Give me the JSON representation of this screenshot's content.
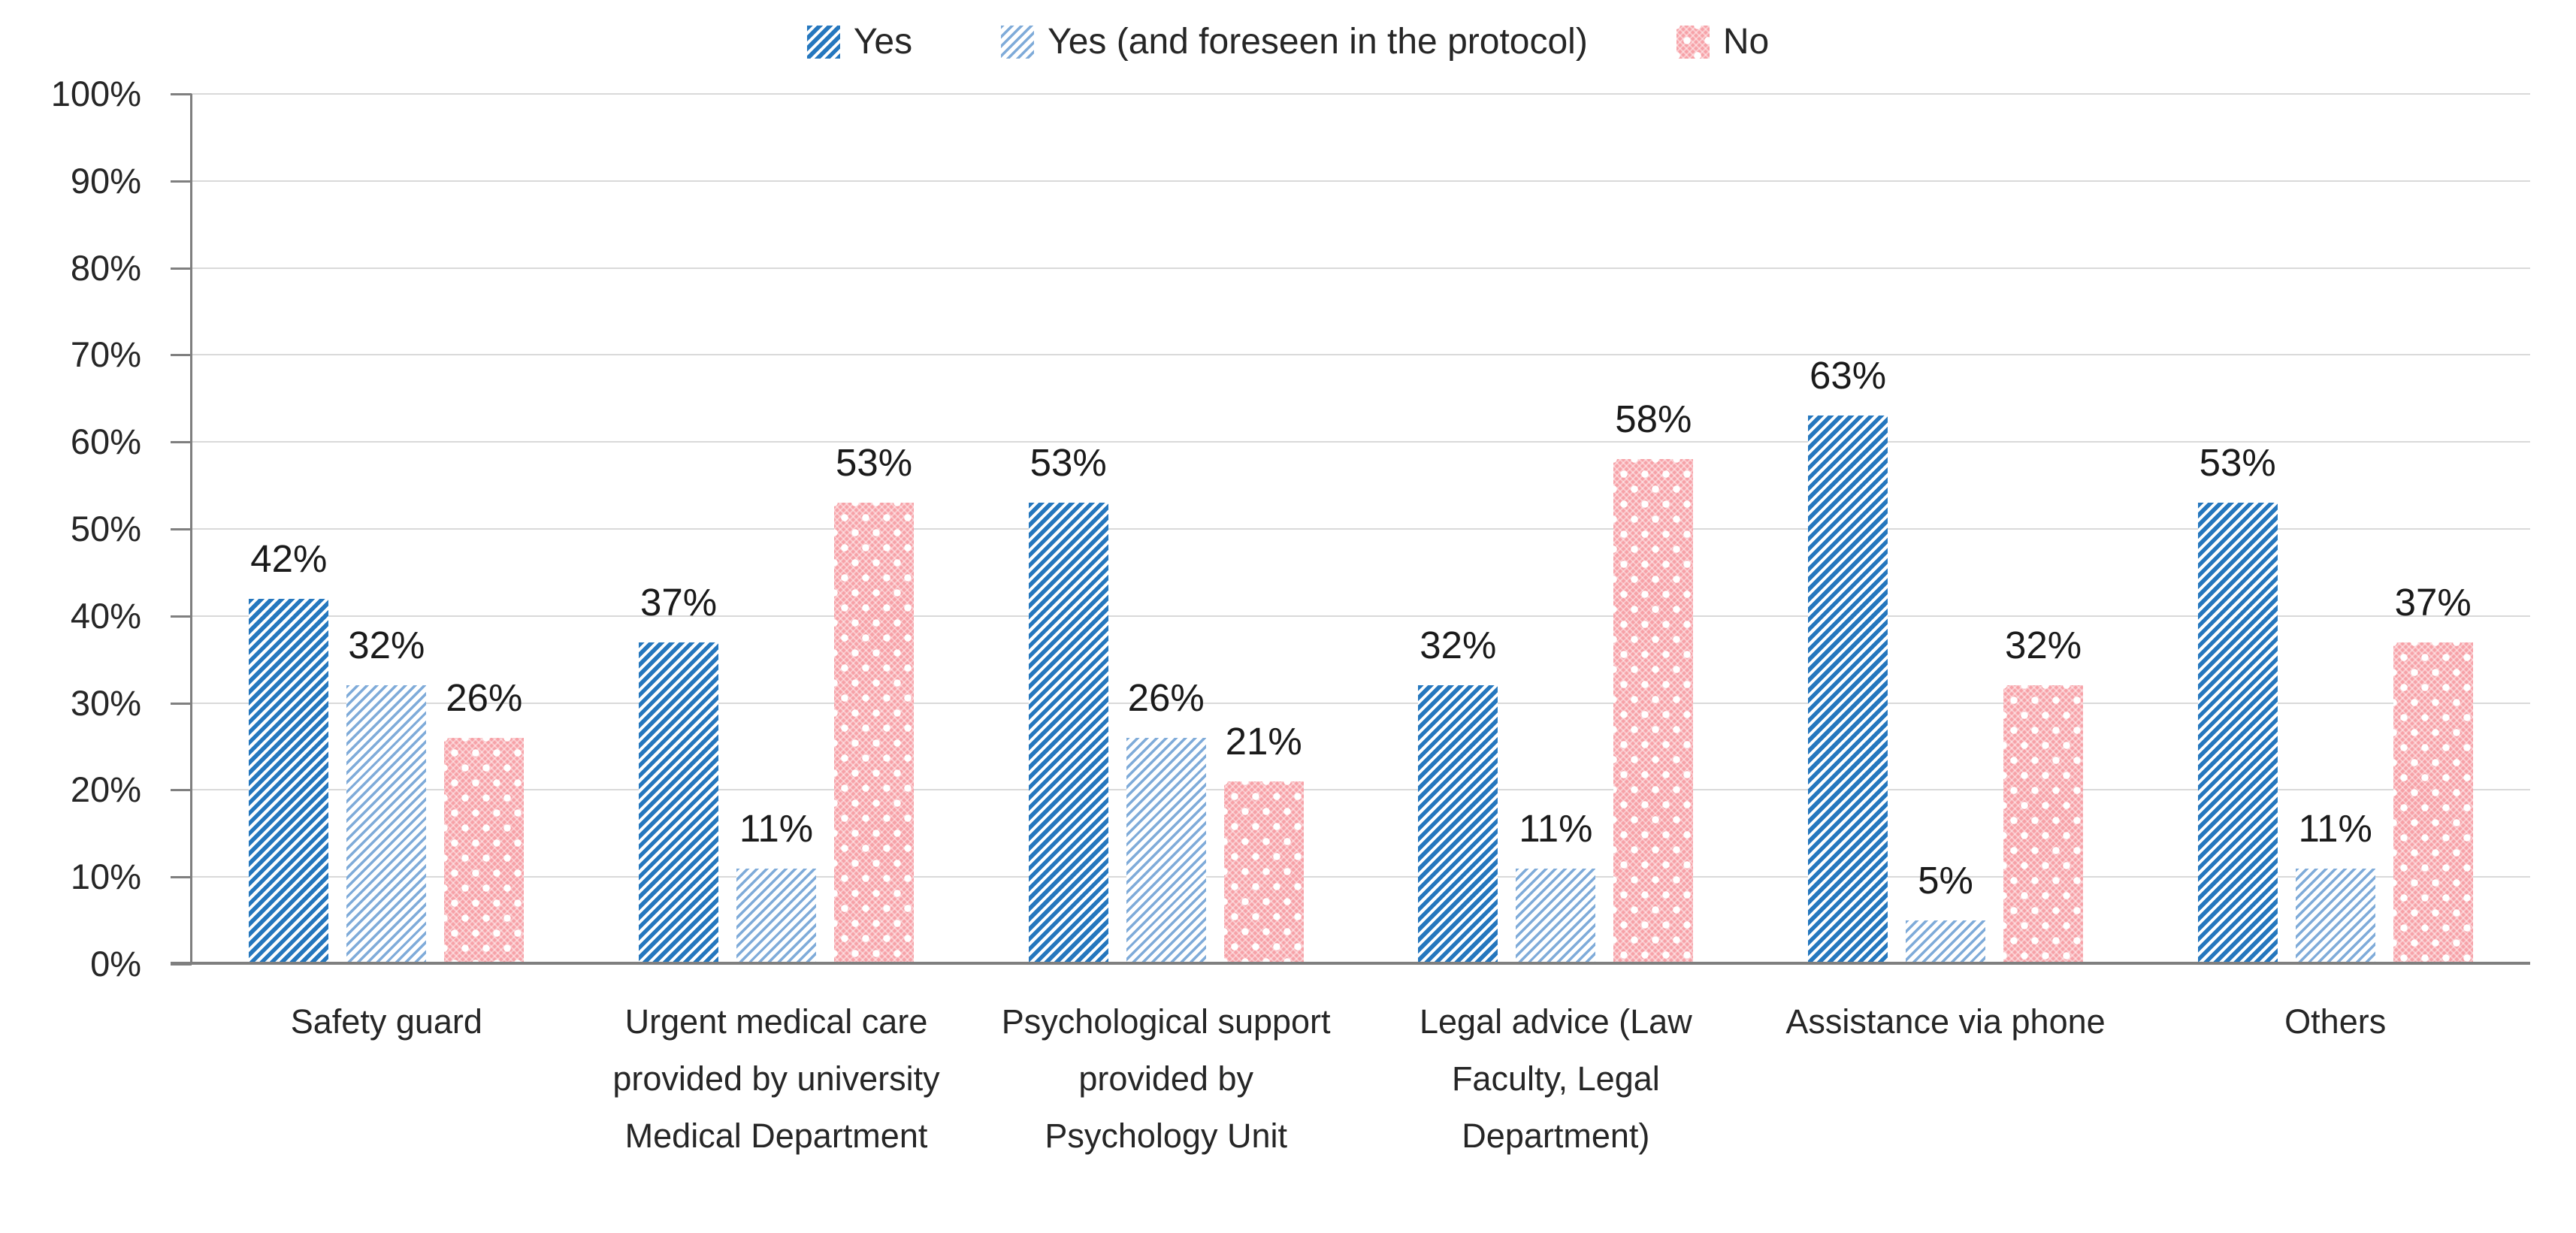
{
  "chart_data": {
    "type": "bar",
    "title": "",
    "xlabel": "",
    "ylabel": "",
    "value_suffix": "%",
    "categories": [
      "Safety guard",
      "Urgent medical care provided by university Medical Department",
      "Psychological support provided by Psychology Unit",
      "Legal advice (Law Faculty, Legal Department)",
      "Assistance via phone",
      "Others"
    ],
    "series": [
      {
        "name": "Yes",
        "swatch": "diagonal-stripe-bold-icon",
        "color": "#2577BE",
        "values": [
          42,
          37,
          53,
          32,
          63,
          53
        ]
      },
      {
        "name": "Yes (and foreseen in the protocol)",
        "swatch": "diagonal-stripe-thin-icon",
        "color": "#7FABD9",
        "values": [
          32,
          11,
          26,
          11,
          5,
          11
        ]
      },
      {
        "name": "No",
        "swatch": "dot-lattice-icon",
        "color": "#F7A1A7",
        "values": [
          26,
          53,
          21,
          58,
          32,
          37
        ]
      }
    ],
    "data_labels": [
      [
        "42%",
        "32%",
        "26%"
      ],
      [
        "37%",
        "11%",
        "53%"
      ],
      [
        "53%",
        "26%",
        "21%"
      ],
      [
        "32%",
        "11%",
        "58%"
      ],
      [
        "63%",
        "5%",
        "32%"
      ],
      [
        "53%",
        "11%",
        "37%"
      ]
    ],
    "y_ticks": [
      "0%",
      "10%",
      "20%",
      "30%",
      "40%",
      "50%",
      "60%",
      "70%",
      "80%",
      "90%",
      "100%"
    ],
    "ylim": [
      0,
      100
    ],
    "grid": true,
    "legend_position": "top",
    "axis_color": "#7F7F7F",
    "gridline_color": "#D9D9D9",
    "text_color": "#262626"
  }
}
